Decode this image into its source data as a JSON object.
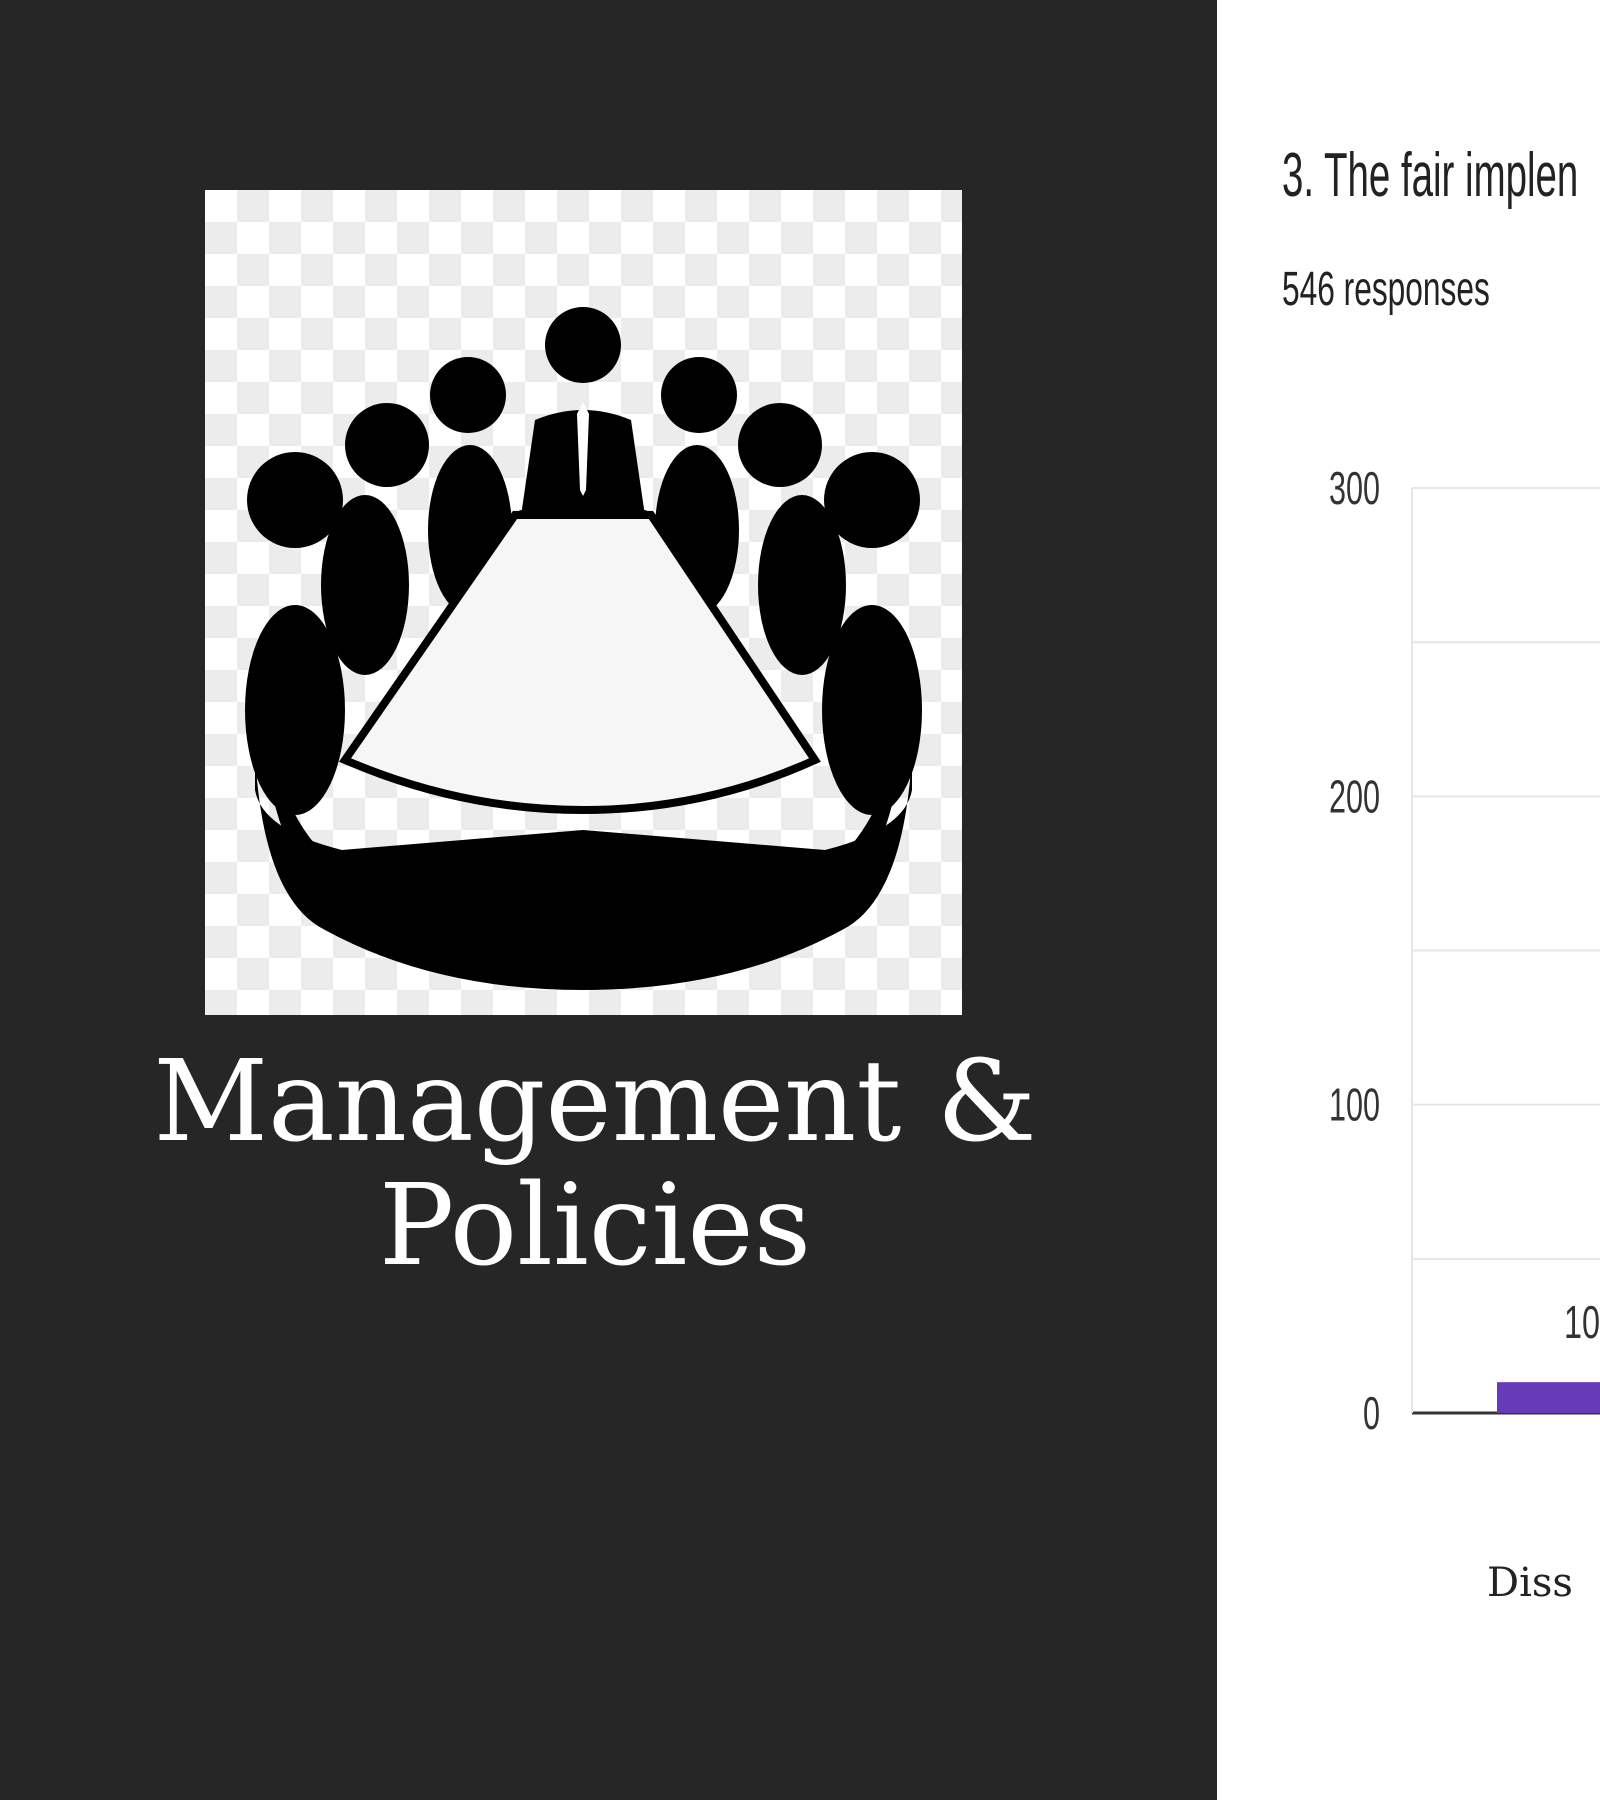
{
  "slide": {
    "title_line1": "Management &",
    "title_line2": "Policies",
    "icon": "boardroom-meeting-icon"
  },
  "survey": {
    "question": "3. The fair implen",
    "responses": "546 responses"
  },
  "chart_data": {
    "type": "bar",
    "title": "",
    "xlabel": "",
    "ylabel": "",
    "ylim": [
      0,
      300
    ],
    "yticks": [
      0,
      100,
      200,
      300
    ],
    "categories": [
      "Diss"
    ],
    "values": [
      10
    ],
    "data_labels": [
      "10"
    ],
    "bar_color": "#673ab7",
    "grid": true
  },
  "colors": {
    "left_background": "#262626",
    "right_background": "#ffffff",
    "bar": "#673ab7"
  }
}
